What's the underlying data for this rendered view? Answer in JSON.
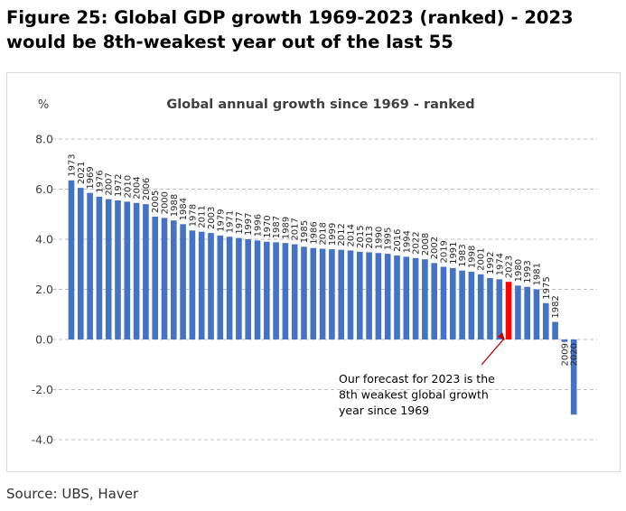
{
  "figure": {
    "title_line1": "Figure 25: Global GDP growth 1969-2023 (ranked) - 2023",
    "title_line2": "would be 8th-weakest year out of the last 55",
    "source": "Source: UBS, Haver"
  },
  "colors": {
    "bar": "#4472C4",
    "highlight": "#FF0000",
    "grid": "#BFBFBF"
  },
  "chart_data": {
    "type": "bar",
    "title": "Global annual growth since 1969 - ranked",
    "ylabel": "%",
    "ylim": [
      -4,
      8
    ],
    "yticks": [
      8,
      6,
      4,
      2,
      0,
      -2,
      -4
    ],
    "ytick_labels": [
      "8.0",
      "6.0",
      "4.0",
      "2.0",
      "0.0",
      "-2.0",
      "-4.0"
    ],
    "grid": true,
    "highlight_category": "2023",
    "categories": [
      "1973",
      "2021",
      "1969",
      "1976",
      "2007",
      "1972",
      "2010",
      "2004",
      "2006",
      "2005",
      "2000",
      "1988",
      "1984",
      "1978",
      "2011",
      "2003",
      "1979",
      "1971",
      "1977",
      "1997",
      "1996",
      "1970",
      "1987",
      "1989",
      "2017",
      "1985",
      "1986",
      "2018",
      "1999",
      "2012",
      "2014",
      "2015",
      "2013",
      "1990",
      "1995",
      "2016",
      "1994",
      "2022",
      "2008",
      "2002",
      "2019",
      "1991",
      "1983",
      "1998",
      "2001",
      "1992",
      "1974",
      "2023",
      "1980",
      "1993",
      "1981",
      "1975",
      "1982",
      "2009",
      "2020"
    ],
    "values": [
      6.35,
      6.05,
      5.85,
      5.7,
      5.6,
      5.55,
      5.5,
      5.45,
      5.4,
      4.9,
      4.85,
      4.75,
      4.6,
      4.35,
      4.3,
      4.25,
      4.15,
      4.1,
      4.05,
      4.0,
      3.95,
      3.9,
      3.88,
      3.85,
      3.8,
      3.7,
      3.65,
      3.62,
      3.6,
      3.58,
      3.55,
      3.5,
      3.48,
      3.45,
      3.42,
      3.35,
      3.3,
      3.25,
      3.2,
      3.05,
      2.9,
      2.85,
      2.75,
      2.7,
      2.6,
      2.45,
      2.4,
      2.3,
      2.15,
      2.1,
      2.0,
      1.45,
      0.7,
      -0.1,
      -3.0
    ],
    "annotation": {
      "lines": [
        "Our forecast for 2023 is the",
        "8th weakest global growth",
        "year since 1969"
      ],
      "target": "2023"
    }
  }
}
